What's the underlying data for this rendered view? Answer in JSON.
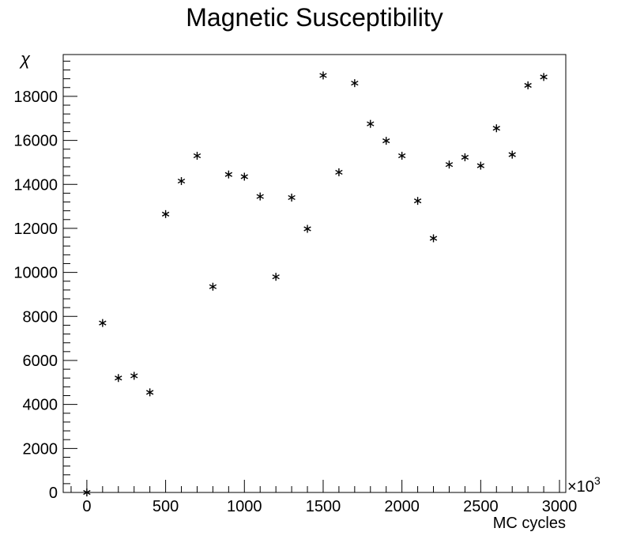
{
  "chart_data": {
    "type": "scatter",
    "title": "Magnetic Susceptibility",
    "xlabel": "MC cycles",
    "ylabel": "χ",
    "x_multiplier_label": "×10",
    "x_multiplier_exponent": "3",
    "xlim": [
      -150,
      3040
    ],
    "ylim": [
      0,
      19900
    ],
    "x_ticks": [
      0,
      500,
      1000,
      1500,
      2000,
      2500,
      3000
    ],
    "x_tick_labels": [
      "0",
      "500",
      "1000",
      "1500",
      "2000",
      "2500",
      "3000"
    ],
    "y_ticks": [
      0,
      2000,
      4000,
      6000,
      8000,
      10000,
      12000,
      14000,
      16000,
      18000
    ],
    "y_tick_labels": [
      "0",
      "2000",
      "4000",
      "6000",
      "8000",
      "10000",
      "12000",
      "14000",
      "16000",
      "18000"
    ],
    "marker": "asterisk",
    "series": [
      {
        "x": [
          0,
          100,
          200,
          300,
          400,
          500,
          600,
          700,
          800,
          900,
          1000,
          1100,
          1200,
          1300,
          1400,
          1500,
          1600,
          1700,
          1800,
          1900,
          2000,
          2100,
          2200,
          2300,
          2400,
          2500,
          2600,
          2700,
          2800,
          2900
        ],
        "y": [
          0,
          7700,
          5200,
          5300,
          4550,
          12650,
          14150,
          15300,
          9350,
          14450,
          14350,
          13450,
          9800,
          13400,
          11980,
          18950,
          14550,
          18600,
          16750,
          15980,
          15300,
          13250,
          11550,
          14900,
          15230,
          14850,
          16550,
          15350,
          18500,
          18880
        ]
      }
    ]
  }
}
